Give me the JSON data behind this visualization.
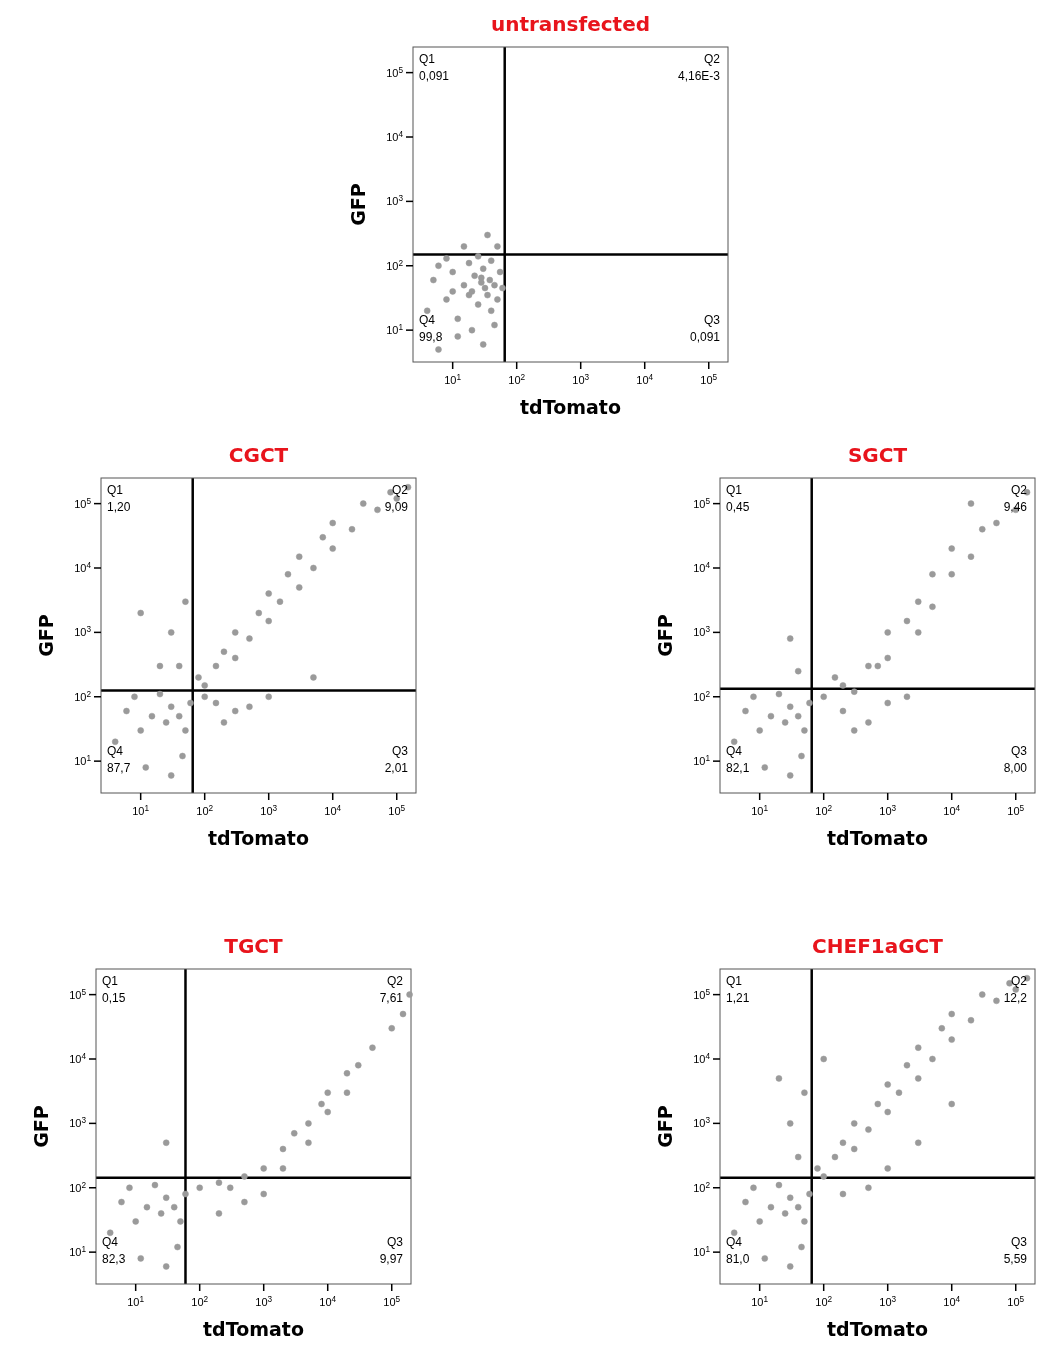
{
  "chart_data": [
    {
      "type": "scatter",
      "title": "untransfected",
      "xlabel": "tdTomato",
      "ylabel": "GFP",
      "log": "xy",
      "grid": false,
      "marker": "circle",
      "xlim": [
        2.4,
        200000
      ],
      "ylim": [
        3.2,
        250000
      ],
      "xticks": [
        {
          "value": 10,
          "label": "10$^{1}$"
        },
        {
          "value": 100,
          "label": "10$^{2}$"
        },
        {
          "value": 1000,
          "label": "10$^{3}$"
        },
        {
          "value": 10000,
          "label": "10$^{4}$"
        },
        {
          "value": 100000,
          "label": "10$^{5}$"
        }
      ],
      "yticks": [
        {
          "value": 10,
          "label": "10$^{1}$"
        },
        {
          "value": 100,
          "label": "10$^{2}$"
        },
        {
          "value": 1000,
          "label": "10$^{3}$"
        },
        {
          "value": 10000,
          "label": "10$^{4}$"
        },
        {
          "value": 100000,
          "label": "10$^{5}$"
        }
      ],
      "ref_lines": [
        {
          "axis": "x",
          "value": 65,
          "color": "#000000"
        },
        {
          "axis": "y",
          "value": 150,
          "color": "#000000"
        }
      ],
      "annotations": [
        "Q1\n0,091",
        "Q2\n4,16E-3",
        "Q3\n0,091",
        "Q4\n99,8"
      ],
      "series": [
        {
          "color": "#9a9a9a",
          "x": [
            4,
            5,
            6,
            8,
            10,
            12,
            15,
            18,
            20,
            22,
            25,
            28,
            30,
            32,
            35,
            38,
            40,
            45,
            50,
            55,
            60,
            8,
            12,
            20,
            30,
            45,
            25,
            35,
            50,
            15,
            6,
            10,
            40,
            28,
            18
          ],
          "values": [
            20,
            60,
            100,
            30,
            80,
            15,
            50,
            110,
            40,
            70,
            25,
            55,
            90,
            45,
            35,
            60,
            120,
            50,
            30,
            80,
            45,
            130,
            8,
            10,
            6,
            12,
            140,
            300,
            200,
            200,
            5,
            40,
            20,
            65,
            35
          ]
        }
      ]
    },
    {
      "type": "scatter",
      "title": "CGCT",
      "xlabel": "tdTomato",
      "ylabel": "GFP",
      "log": "xy",
      "grid": false,
      "marker": "circle",
      "xlim": [
        2.4,
        200000
      ],
      "ylim": [
        3.2,
        250000
      ],
      "xticks": [
        {
          "value": 10,
          "label": "10$^{1}$"
        },
        {
          "value": 100,
          "label": "10$^{2}$"
        },
        {
          "value": 1000,
          "label": "10$^{3}$"
        },
        {
          "value": 10000,
          "label": "10$^{4}$"
        },
        {
          "value": 100000,
          "label": "10$^{5}$"
        }
      ],
      "yticks": [
        {
          "value": 10,
          "label": "10$^{1}$"
        },
        {
          "value": 100,
          "label": "10$^{2}$"
        },
        {
          "value": 1000,
          "label": "10$^{3}$"
        },
        {
          "value": 10000,
          "label": "10$^{4}$"
        },
        {
          "value": 100000,
          "label": "10$^{5}$"
        }
      ],
      "ref_lines": [
        {
          "axis": "x",
          "value": 65,
          "color": "#000000"
        },
        {
          "axis": "y",
          "value": 125,
          "color": "#000000"
        }
      ],
      "annotations": [
        "Q1\n1,20",
        "Q2\n9,09",
        "Q3\n2,01",
        "Q4\n87,7"
      ],
      "series": [
        {
          "color": "#9a9a9a",
          "x": [
            4,
            6,
            8,
            10,
            15,
            20,
            25,
            30,
            40,
            50,
            60,
            12,
            30,
            45,
            80,
            100,
            150,
            200,
            300,
            300,
            500,
            700,
            1000,
            1000,
            1500,
            2000,
            3000,
            3000,
            5000,
            7000,
            10000,
            10000,
            20000,
            30000,
            50000,
            80000,
            100000,
            150000,
            40,
            30,
            50,
            100,
            150,
            300,
            1000,
            5000,
            200,
            500,
            20,
            10
          ],
          "values": [
            20,
            60,
            100,
            30,
            50,
            110,
            40,
            70,
            50,
            30,
            80,
            8,
            6,
            12,
            200,
            150,
            300,
            500,
            400,
            1000,
            800,
            2000,
            1500,
            4000,
            3000,
            8000,
            5000,
            15000,
            10000,
            30000,
            20000,
            50000,
            40000,
            100000,
            80000,
            150000,
            120000,
            180000,
            300,
            1000,
            3000,
            100,
            80,
            60,
            100,
            200,
            40,
            70,
            300,
            2000
          ]
        }
      ]
    },
    {
      "type": "scatter",
      "title": "SGCT",
      "xlabel": "tdTomato",
      "ylabel": "GFP",
      "log": "xy",
      "grid": false,
      "marker": "circle",
      "xlim": [
        2.4,
        200000
      ],
      "ylim": [
        3.2,
        250000
      ],
      "xticks": [
        {
          "value": 10,
          "label": "10$^{1}$"
        },
        {
          "value": 100,
          "label": "10$^{2}$"
        },
        {
          "value": 1000,
          "label": "10$^{3}$"
        },
        {
          "value": 10000,
          "label": "10$^{4}$"
        },
        {
          "value": 100000,
          "label": "10$^{5}$"
        }
      ],
      "yticks": [
        {
          "value": 10,
          "label": "10$^{1}$"
        },
        {
          "value": 100,
          "label": "10$^{2}$"
        },
        {
          "value": 1000,
          "label": "10$^{3}$"
        },
        {
          "value": 10000,
          "label": "10$^{4}$"
        },
        {
          "value": 100000,
          "label": "10$^{5}$"
        }
      ],
      "ref_lines": [
        {
          "axis": "x",
          "value": 65,
          "color": "#000000"
        },
        {
          "axis": "y",
          "value": 133,
          "color": "#000000"
        }
      ],
      "annotations": [
        "Q1\n0,45",
        "Q2\n9,46",
        "Q3\n8,00",
        "Q4\n82,1"
      ],
      "series": [
        {
          "color": "#9a9a9a",
          "x": [
            4,
            6,
            8,
            10,
            15,
            20,
            25,
            30,
            40,
            50,
            60,
            12,
            30,
            45,
            100,
            200,
            300,
            500,
            1000,
            1000,
            2000,
            3000,
            5000,
            5000,
            10000,
            10000,
            20000,
            30000,
            50000,
            100000,
            150000,
            200,
            500,
            1000,
            300,
            2000,
            20000,
            40,
            150,
            700,
            3000,
            30
          ],
          "values": [
            20,
            60,
            100,
            30,
            50,
            110,
            40,
            70,
            50,
            30,
            80,
            8,
            6,
            12,
            100,
            150,
            120,
            300,
            400,
            1000,
            1500,
            3000,
            2500,
            8000,
            8000,
            20000,
            15000,
            40000,
            50000,
            80000,
            150000,
            60,
            40,
            80,
            30,
            100,
            100000,
            250,
            200,
            300,
            1000,
            800
          ]
        }
      ]
    },
    {
      "type": "scatter",
      "title": "TGCT",
      "xlabel": "tdTomato",
      "ylabel": "GFP",
      "log": "xy",
      "grid": false,
      "marker": "circle",
      "xlim": [
        2.4,
        200000
      ],
      "ylim": [
        3.2,
        250000
      ],
      "xticks": [
        {
          "value": 10,
          "label": "10$^{1}$"
        },
        {
          "value": 100,
          "label": "10$^{2}$"
        },
        {
          "value": 1000,
          "label": "10$^{3}$"
        },
        {
          "value": 10000,
          "label": "10$^{4}$"
        },
        {
          "value": 100000,
          "label": "10$^{5}$"
        }
      ],
      "yticks": [
        {
          "value": 10,
          "label": "10$^{1}$"
        },
        {
          "value": 100,
          "label": "10$^{2}$"
        },
        {
          "value": 1000,
          "label": "10$^{3}$"
        },
        {
          "value": 10000,
          "label": "10$^{4}$"
        },
        {
          "value": 100000,
          "label": "10$^{5}$"
        }
      ],
      "ref_lines": [
        {
          "axis": "x",
          "value": 60,
          "color": "#000000"
        },
        {
          "axis": "y",
          "value": 143,
          "color": "#000000"
        }
      ],
      "annotations": [
        "Q1\n0,15",
        "Q2\n7,61",
        "Q3\n9,97",
        "Q4\n82,3"
      ],
      "series": [
        {
          "color": "#9a9a9a",
          "x": [
            4,
            6,
            8,
            10,
            15,
            20,
            25,
            30,
            40,
            50,
            60,
            12,
            30,
            45,
            100,
            200,
            300,
            500,
            1000,
            2000,
            3000,
            5000,
            8000,
            10000,
            20000,
            30000,
            50000,
            100000,
            150000,
            190000,
            2000,
            5000,
            10000,
            20000,
            500,
            1000,
            200,
            30
          ],
          "values": [
            20,
            60,
            100,
            30,
            50,
            110,
            40,
            70,
            50,
            30,
            80,
            8,
            6,
            12,
            100,
            120,
            100,
            150,
            200,
            400,
            700,
            1000,
            2000,
            3000,
            6000,
            8000,
            15000,
            30000,
            50000,
            100000,
            200,
            500,
            1500,
            3000,
            60,
            80,
            40,
            500
          ]
        }
      ]
    },
    {
      "type": "scatter",
      "title": "CHEF1aGCT",
      "xlabel": "tdTomato",
      "ylabel": "GFP",
      "log": "xy",
      "grid": false,
      "marker": "circle",
      "xlim": [
        2.4,
        200000
      ],
      "ylim": [
        3.2,
        250000
      ],
      "xticks": [
        {
          "value": 10,
          "label": "10$^{1}$"
        },
        {
          "value": 100,
          "label": "10$^{2}$"
        },
        {
          "value": 1000,
          "label": "10$^{3}$"
        },
        {
          "value": 10000,
          "label": "10$^{4}$"
        },
        {
          "value": 100000,
          "label": "10$^{5}$"
        }
      ],
      "yticks": [
        {
          "value": 10,
          "label": "10$^{1}$"
        },
        {
          "value": 100,
          "label": "10$^{2}$"
        },
        {
          "value": 1000,
          "label": "10$^{3}$"
        },
        {
          "value": 10000,
          "label": "10$^{4}$"
        },
        {
          "value": 100000,
          "label": "10$^{5}$"
        }
      ],
      "ref_lines": [
        {
          "axis": "x",
          "value": 65,
          "color": "#000000"
        },
        {
          "axis": "y",
          "value": 143,
          "color": "#000000"
        }
      ],
      "annotations": [
        "Q1\n1,21",
        "Q2\n12,2",
        "Q3\n5,59",
        "Q4\n81,0"
      ],
      "series": [
        {
          "color": "#9a9a9a",
          "x": [
            4,
            6,
            8,
            10,
            15,
            20,
            25,
            30,
            40,
            50,
            60,
            12,
            30,
            45,
            80,
            100,
            150,
            200,
            300,
            300,
            500,
            700,
            1000,
            1000,
            1500,
            2000,
            3000,
            3000,
            5000,
            7000,
            10000,
            10000,
            20000,
            30000,
            50000,
            80000,
            100000,
            150000,
            40,
            30,
            50,
            200,
            500,
            1000,
            3000,
            10000,
            20,
            100
          ],
          "values": [
            20,
            60,
            100,
            30,
            50,
            110,
            40,
            70,
            50,
            30,
            80,
            8,
            6,
            12,
            200,
            150,
            300,
            500,
            400,
            1000,
            800,
            2000,
            1500,
            4000,
            3000,
            8000,
            5000,
            15000,
            10000,
            30000,
            20000,
            50000,
            40000,
            100000,
            80000,
            150000,
            120000,
            180000,
            300,
            1000,
            3000,
            80,
            100,
            200,
            500,
            2000,
            5000,
            10000
          ]
        }
      ]
    }
  ]
}
